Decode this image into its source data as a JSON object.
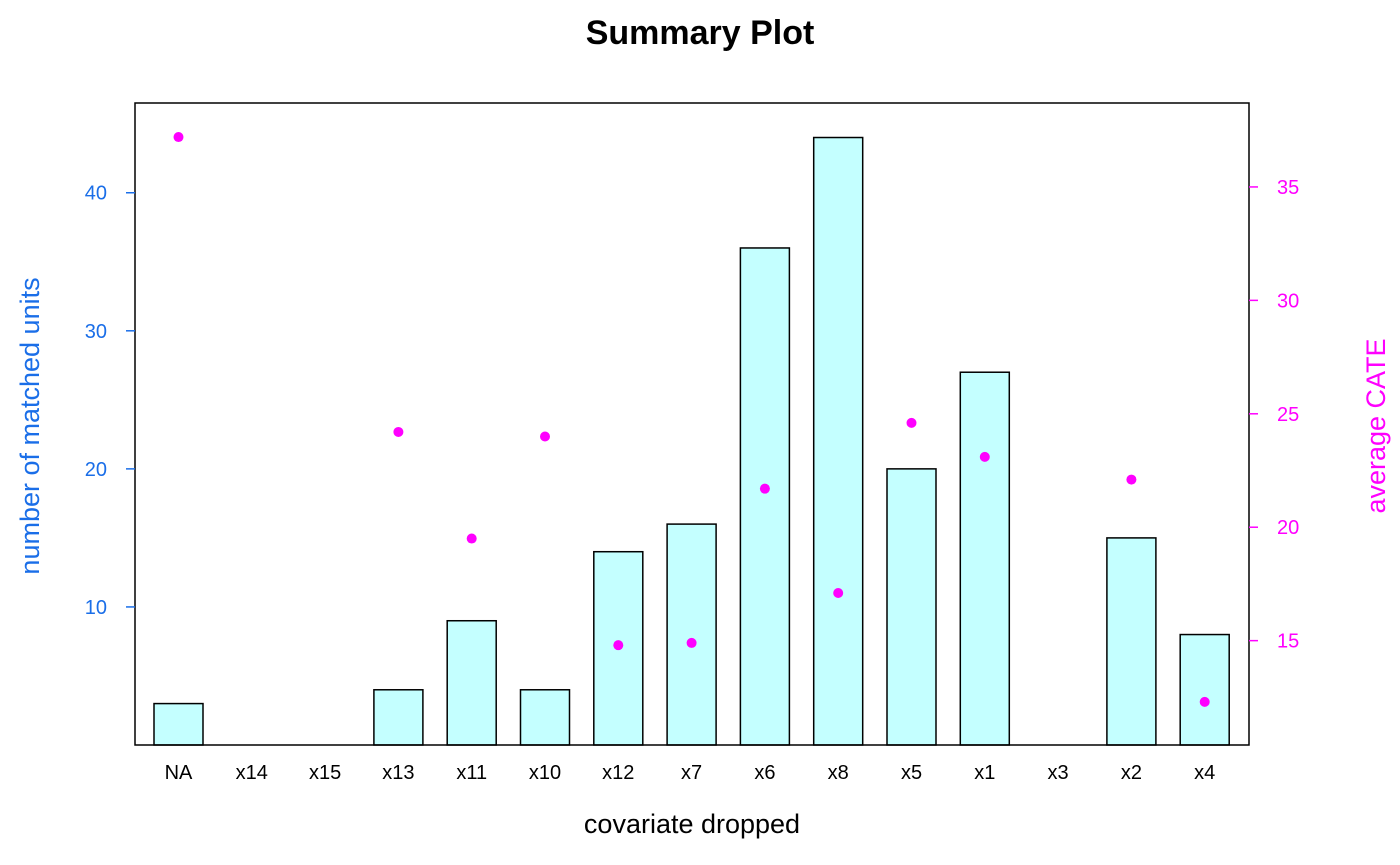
{
  "chart_data": {
    "type": "bar",
    "title": "Summary Plot",
    "xlabel": "covariate dropped",
    "categories": [
      "NA",
      "x14",
      "x15",
      "x13",
      "x11",
      "x10",
      "x12",
      "x7",
      "x6",
      "x8",
      "x5",
      "x1",
      "x3",
      "x2",
      "x4"
    ],
    "series": [
      {
        "type": "bar",
        "axis": "left",
        "values": [
          3,
          0,
          0,
          4,
          9,
          4,
          14,
          16,
          36,
          44,
          20,
          27,
          0,
          15,
          8
        ]
      },
      {
        "type": "scatter",
        "axis": "right",
        "values": [
          37.2,
          null,
          null,
          24.2,
          19.5,
          24.0,
          14.8,
          14.9,
          21.7,
          17.1,
          24.6,
          23.1,
          null,
          22.1,
          12.3
        ]
      }
    ],
    "left_axis": {
      "label": "number of matched units",
      "ticks": [
        10,
        20,
        30,
        40
      ],
      "ylim": [
        0,
        46.5
      ]
    },
    "right_axis": {
      "label": "average CATE",
      "ticks": [
        15,
        20,
        25,
        30,
        35
      ],
      "ylim": [
        10.4,
        38.7
      ]
    },
    "grid": false,
    "colors": {
      "bar_fill": "#c4ffff",
      "bar_stroke": "#000000",
      "points": "#ff00ff",
      "left_axis": "#1a6ee8",
      "right_axis": "#ff00ff"
    }
  }
}
